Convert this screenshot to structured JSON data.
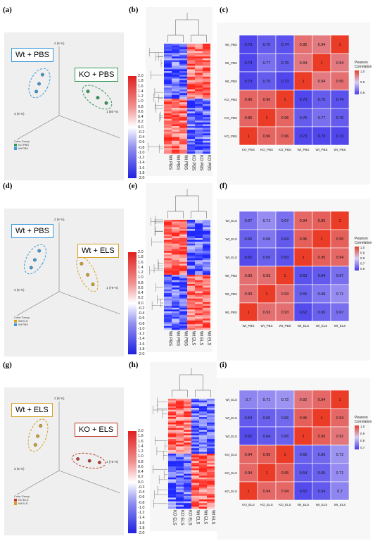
{
  "figure": {
    "rows": [
      {
        "pca_label": "(a)",
        "heat_label": "(b)",
        "corr_label": "(c)",
        "pca": {
          "group1": {
            "label": "Wt + PBS",
            "color": "#3a9ad9"
          },
          "group2": {
            "label": "KO + PBS",
            "color": "#2e9a5a"
          },
          "axis1": "1 (80 %)",
          "axis2": "2 (6 %)",
          "axis3": "3 (5 %)",
          "legend_title": "Color Group",
          "legend_items": [
            {
              "name": "KO PBS",
              "color": "#2e9a5a"
            },
            {
              "name": "Wt PBS",
              "color": "#3a9ad9"
            }
          ]
        },
        "heat_cols": [
          "Wt PBS",
          "Wt PBS",
          "Wt PBS",
          "KO PBS",
          "KO PBS",
          "KO PBS"
        ],
        "cbar": [
          "2.0",
          "1.8",
          "1.6",
          "1.4",
          "1.2",
          "1.0",
          "0.8",
          "0.6",
          "0.4",
          "0.2",
          "0.0",
          "-0.2",
          "-0.4",
          "-0.6",
          "-0.8",
          "-1.0",
          "-1.2",
          "-1.4",
          "-1.6",
          "-1.8",
          "-2.0"
        ],
        "corr": {
          "labels": [
            "KO_PBS",
            "KO_PBS",
            "KO_PBS",
            "Wt_PBS",
            "Wt_PBS",
            "Wt_PBS"
          ],
          "row_labels": [
            "Wt_PBS",
            "Wt_PBS",
            "Wt_PBS",
            "KO_PBS",
            "KO_PBS",
            "KO_PBS"
          ],
          "values": [
            [
              "0.73",
              "0.75",
              "0.74",
              "0.95",
              "0.94",
              "1"
            ],
            [
              "0.73",
              "0.77",
              "0.75",
              "0.94",
              "1",
              "0.94"
            ],
            [
              "0.73",
              "0.75",
              "0.73",
              "1",
              "0.94",
              "0.95"
            ],
            [
              "0.96",
              "0.96",
              "1",
              "0.73",
              "0.75",
              "0.74"
            ],
            [
              "0.96",
              "1",
              "0.96",
              "0.75",
              "0.77",
              "0.75"
            ],
            [
              "1",
              "0.96",
              "0.96",
              "0.73",
              "0.73",
              "0.73"
            ]
          ],
          "legend_title": "Pearson Correlation",
          "legend_ticks": [
            "1.0",
            "0.9",
            "0.8"
          ]
        }
      },
      {
        "pca_label": "(d)",
        "heat_label": "(e)",
        "corr_label": "(f)",
        "pca": {
          "group1": {
            "label": "Wt + PBS",
            "color": "#3a9ad9"
          },
          "group2": {
            "label": "Wt + ELS",
            "color": "#d4a020"
          },
          "axis1": "1 (79 %)",
          "axis2": "2 (6 %)",
          "axis3": "3 (5 %)",
          "legend_title": "Color Group",
          "legend_items": [
            {
              "name": "Wt ELS",
              "color": "#d4a020"
            },
            {
              "name": "Wt PBS",
              "color": "#3a9ad9"
            }
          ]
        },
        "heat_cols": [
          "Wt PBS",
          "Wt PBS",
          "Wt PBS",
          "Wt ELS",
          "Wt ELS",
          "Wt ELS"
        ],
        "cbar": [
          "2.0",
          "1.8",
          "1.6",
          "1.4",
          "1.2",
          "1.0",
          "0.8",
          "0.6",
          "0.4",
          "0.2",
          "0.0",
          "-0.2",
          "-0.4",
          "-0.6",
          "-0.8",
          "-1.0",
          "-1.2",
          "-1.4",
          "-1.6",
          "-1.8",
          "-2.0"
        ],
        "corr": {
          "labels": [
            "Wt_PBS",
            "Wt_PBS",
            "Wt_PBS",
            "Wt_ELS",
            "Wt_ELS",
            "Wt_ELS"
          ],
          "row_labels": [
            "Wt_ELS",
            "Wt_ELS",
            "Wt_ELS",
            "Wt_PBS",
            "Wt_PBS",
            "Wt_PBS"
          ],
          "values": [
            [
              "0.67",
              "0.71",
              "0.67",
              "0.94",
              "0.95",
              "1"
            ],
            [
              "0.65",
              "0.68",
              "0.64",
              "0.95",
              "1",
              "0.95"
            ],
            [
              "0.62",
              "0.65",
              "0.63",
              "1",
              "0.95",
              "0.94"
            ],
            [
              "0.93",
              "0.93",
              "1",
              "0.63",
              "0.64",
              "0.67"
            ],
            [
              "0.93",
              "1",
              "0.93",
              "0.65",
              "0.68",
              "0.71"
            ],
            [
              "1",
              "0.93",
              "0.93",
              "0.62",
              "0.65",
              "0.67"
            ]
          ],
          "legend_title": "Pearson Correlation",
          "legend_ticks": [
            "1.0",
            "0.9",
            "0.8",
            "0.7",
            "0.6"
          ]
        }
      },
      {
        "pca_label": "(g)",
        "heat_label": "(h)",
        "corr_label": "(i)",
        "pca": {
          "group1": {
            "label": "Wt + ELS",
            "color": "#d4a020"
          },
          "group2": {
            "label": "KO + ELS",
            "color": "#c0392b"
          },
          "axis1": "1 (75 %)",
          "axis2": "2 (6 %)",
          "axis3": "3 (5 %)",
          "legend_title": "Color Group",
          "legend_items": [
            {
              "name": "KO ELS",
              "color": "#c0392b"
            },
            {
              "name": "Wt ELS",
              "color": "#d4a020"
            }
          ]
        },
        "heat_cols": [
          "KO ELS",
          "KO ELS",
          "KO ELS",
          "Wt ELS",
          "Wt ELS",
          "Wt ELS"
        ],
        "cbar": [
          "2.0",
          "1.8",
          "1.6",
          "1.4",
          "1.2",
          "1.0",
          "0.8",
          "0.6",
          "0.4",
          "0.2",
          "0.0",
          "-0.2",
          "-0.4",
          "-0.6",
          "-0.8",
          "-1.0",
          "-1.2",
          "-1.4",
          "-1.6",
          "-1.8",
          "-2.0"
        ],
        "corr": {
          "labels": [
            "KO_ELS",
            "KO_ELS",
            "KO_ELS",
            "Wt_ELS",
            "Wt_ELS",
            "Wt_ELS"
          ],
          "row_labels": [
            "Wt_ELS",
            "Wt_ELS",
            "Wt_ELS",
            "KO_ELS",
            "KO_ELS",
            "KO_ELS"
          ],
          "values": [
            [
              "0.7",
              "0.71",
              "0.72",
              "0.92",
              "0.94",
              "1"
            ],
            [
              "0.64",
              "0.65",
              "0.66",
              "0.95",
              "1",
              "0.94"
            ],
            [
              "0.62",
              "0.64",
              "0.65",
              "1",
              "0.95",
              "0.92"
            ],
            [
              "0.94",
              "0.95",
              "1",
              "0.65",
              "0.66",
              "0.72"
            ],
            [
              "0.94",
              "1",
              "0.95",
              "0.64",
              "0.65",
              "0.71"
            ],
            [
              "1",
              "0.94",
              "0.94",
              "0.62",
              "0.64",
              "0.7"
            ]
          ],
          "legend_title": "Pearson Correlation",
          "legend_ticks": [
            "1.0",
            "0.9",
            "0.8",
            "0.7"
          ]
        }
      }
    ]
  }
}
